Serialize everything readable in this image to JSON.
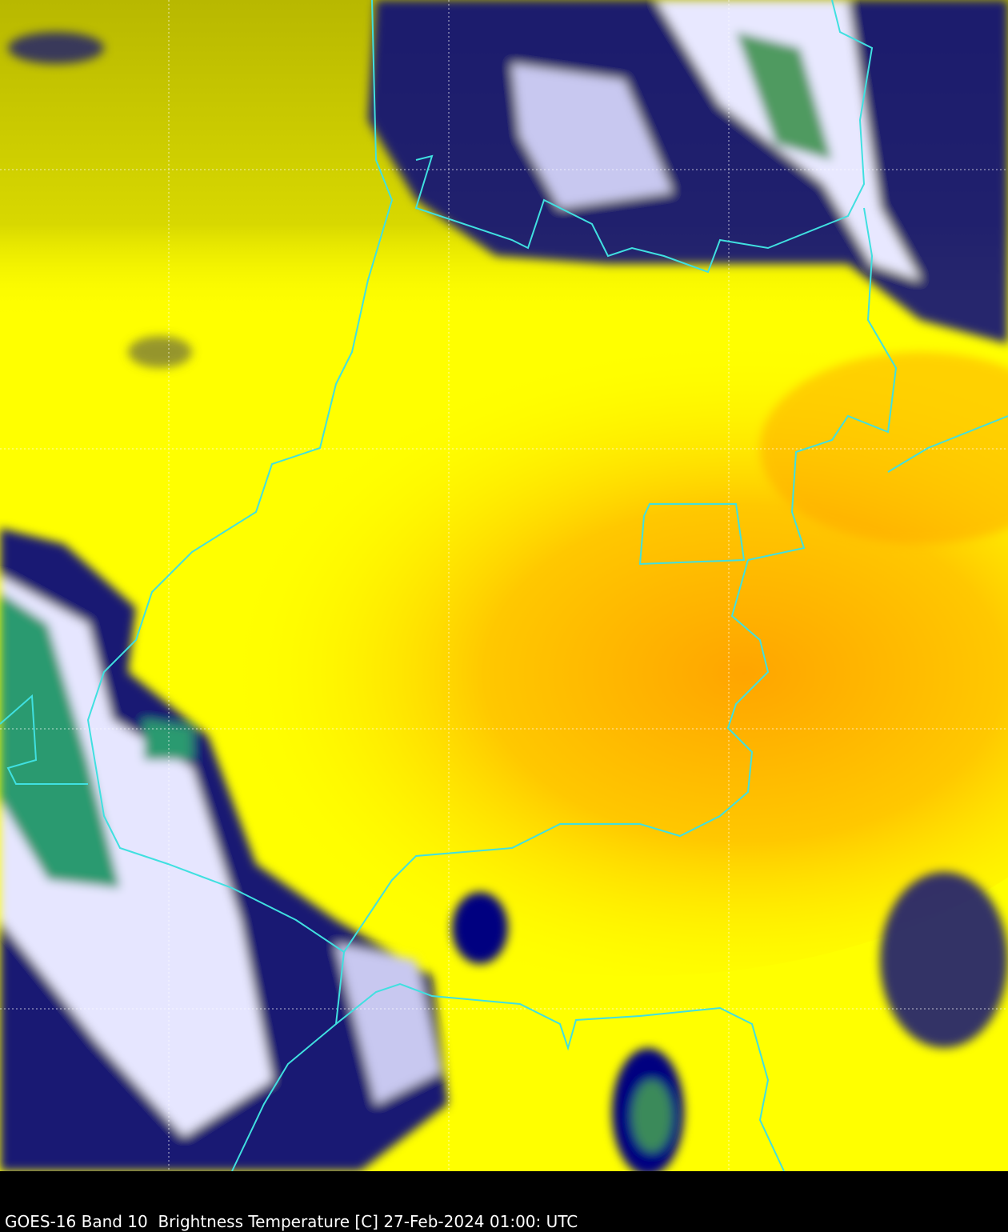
{
  "caption": "GOES-16 Band 10  Brightness Temperature [C] 27-Feb-2024 01:00: UTC",
  "colors": {
    "warm": "#ffa500",
    "mid": "#ffff00",
    "olive": "#c8c800",
    "cold_cloud": "#000080",
    "coldest": "#ffffff",
    "very_cold": "#2a9a70",
    "borders": "#40e0e0",
    "gridlines": "#ffffff"
  }
}
